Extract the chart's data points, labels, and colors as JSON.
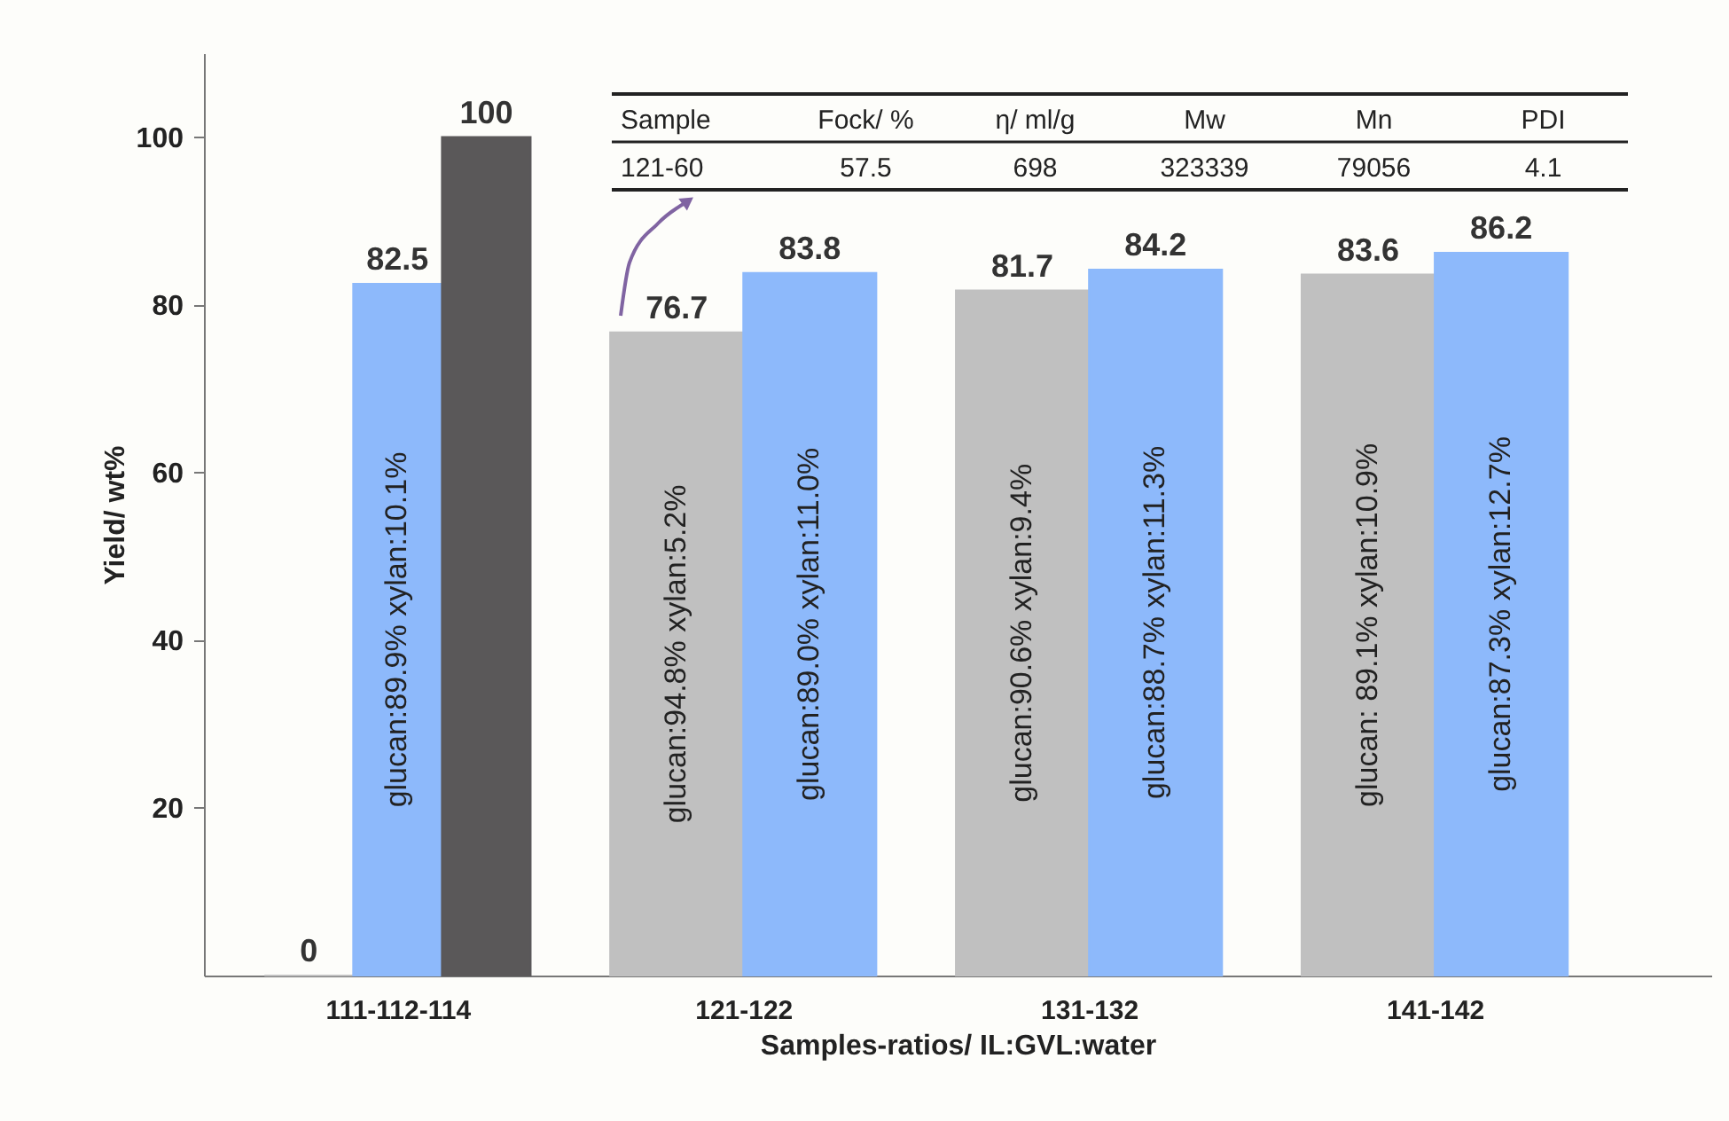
{
  "chart_data": {
    "type": "bar",
    "xlabel": "Samples-ratios/ IL:GVL:water",
    "ylabel": "Yield/ wt%",
    "categories": [
      "111-112-114",
      "121-122",
      "131-132",
      "141-142"
    ],
    "series": [
      {
        "color": "#c0c0c0",
        "values": [
          0,
          76.7,
          81.7,
          83.6
        ]
      },
      {
        "color": "#8db9fb",
        "values": [
          82.5,
          83.8,
          84.2,
          86.2
        ]
      },
      {
        "color": "#5a5859",
        "values": [
          100,
          null,
          null,
          null
        ]
      }
    ],
    "ylim": [
      0,
      110
    ],
    "yticks": [
      20,
      40,
      60,
      80,
      100
    ],
    "grid": false,
    "legend": false,
    "data_labels": true,
    "annotations": [
      "glucan:89.9%   xylan:10.1%",
      "glucan:94.8%   xylan:5.2%",
      "glucan:89.0%   xylan:11.0%",
      "glucan:90.6%   xylan:9.4%",
      "glucan:88.7%   xylan:11.3%",
      "glucan: 89.1%   xylan:10.9%",
      "glucan:87.3%   xylan:12.7%",
      "Sample",
      "Fock/ %",
      "η/ ml/g",
      "Mw",
      "Mn",
      "PDI",
      "121-60",
      "57.5",
      "698",
      "323339",
      "79056",
      "4.1"
    ]
  }
}
